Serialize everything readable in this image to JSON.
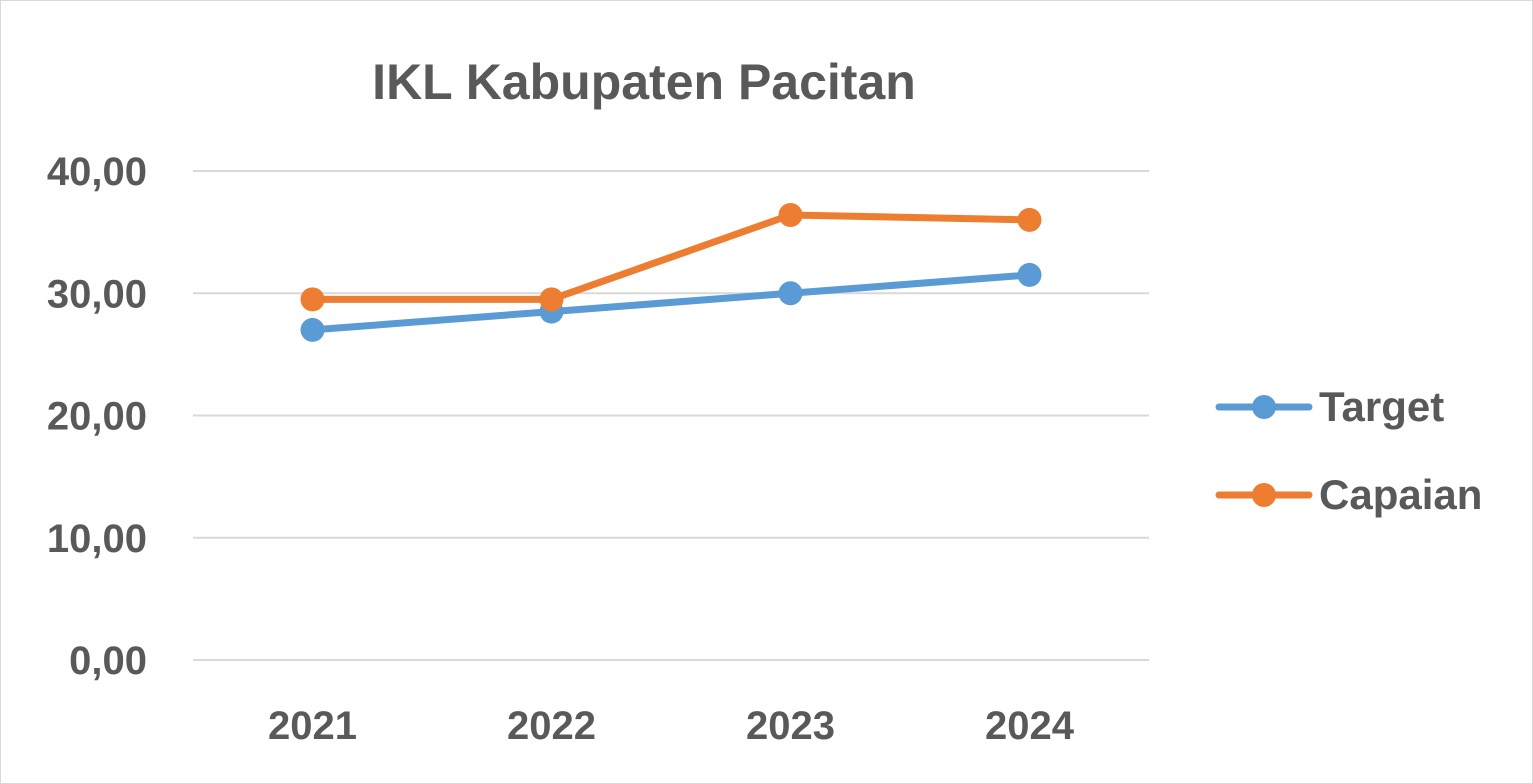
{
  "chart_data": {
    "type": "line",
    "title": "IKL Kabupaten Pacitan",
    "xlabel": "",
    "ylabel": "",
    "categories": [
      "2021",
      "2022",
      "2023",
      "2024"
    ],
    "series": [
      {
        "name": "Target",
        "color": "#5b9bd5",
        "values": [
          27.0,
          28.5,
          30.0,
          31.5
        ]
      },
      {
        "name": "Capaian",
        "color": "#ed7d31",
        "values": [
          29.5,
          29.5,
          36.4,
          36.0
        ]
      }
    ],
    "ylim": [
      0,
      40
    ],
    "yticks": [
      0,
      10,
      20,
      30,
      40
    ],
    "ytick_labels": [
      "0,00",
      "10,00",
      "20,00",
      "30,00",
      "40,00"
    ],
    "grid": true,
    "legend_position": "right"
  }
}
